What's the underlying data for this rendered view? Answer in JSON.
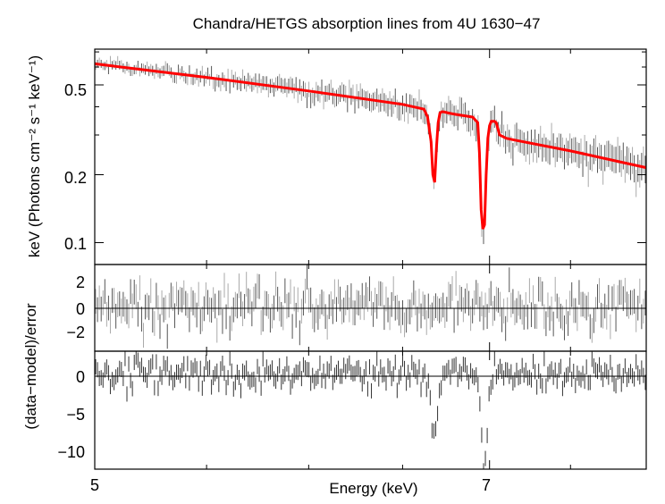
{
  "chart_data": {
    "type": "line",
    "title": "Chandra/HETGS absorption lines from 4U 1630−47",
    "x_axis": {
      "label": "Energy (keV)",
      "scale": "log",
      "range": [
        5.0,
        8.0
      ],
      "tick_labels": [
        "5",
        "7"
      ]
    },
    "panels": [
      {
        "name": "spectrum",
        "ylabel": "keV (Photons cm⁻² s⁻¹ keV⁻¹)",
        "y_scale": "log",
        "ylim": [
          0.08,
          0.72
        ],
        "tick_labels": [
          "0.5",
          "0.2",
          "0.1"
        ],
        "model_color": "#ff0000",
        "data_color": "#000000",
        "model": {
          "x": [
            5.0,
            5.5,
            6.0,
            6.5,
            6.62,
            6.64,
            6.66,
            6.67,
            6.68,
            6.69,
            6.7,
            6.71,
            6.72,
            6.73,
            6.76,
            6.8,
            6.85,
            6.9,
            6.93,
            6.94,
            6.95,
            6.96,
            6.97,
            6.98,
            6.99,
            7.0,
            7.01,
            7.02,
            7.03,
            7.04,
            7.06,
            7.1,
            7.15,
            7.5,
            8.0
          ],
          "y": [
            0.62,
            0.54,
            0.47,
            0.41,
            0.39,
            0.36,
            0.28,
            0.2,
            0.185,
            0.26,
            0.34,
            0.375,
            0.38,
            0.38,
            0.375,
            0.37,
            0.365,
            0.36,
            0.34,
            0.25,
            0.14,
            0.115,
            0.12,
            0.2,
            0.29,
            0.33,
            0.345,
            0.345,
            0.345,
            0.34,
            0.3,
            0.29,
            0.285,
            0.255,
            0.215
          ]
        }
      },
      {
        "name": "residuals-1",
        "ylabel": "(data−model)/error",
        "ylim": [
          -3.5,
          3.5
        ],
        "tick_labels": [
          "2",
          "0",
          "−2"
        ]
      },
      {
        "name": "residuals-2",
        "ylim": [
          -12.5,
          3.0
        ],
        "tick_labels": [
          "0",
          "−5",
          "−10"
        ],
        "dips": [
          {
            "energy": 6.68,
            "depth": -8.0
          },
          {
            "energy": 6.97,
            "depth": -12.0
          }
        ]
      }
    ]
  }
}
